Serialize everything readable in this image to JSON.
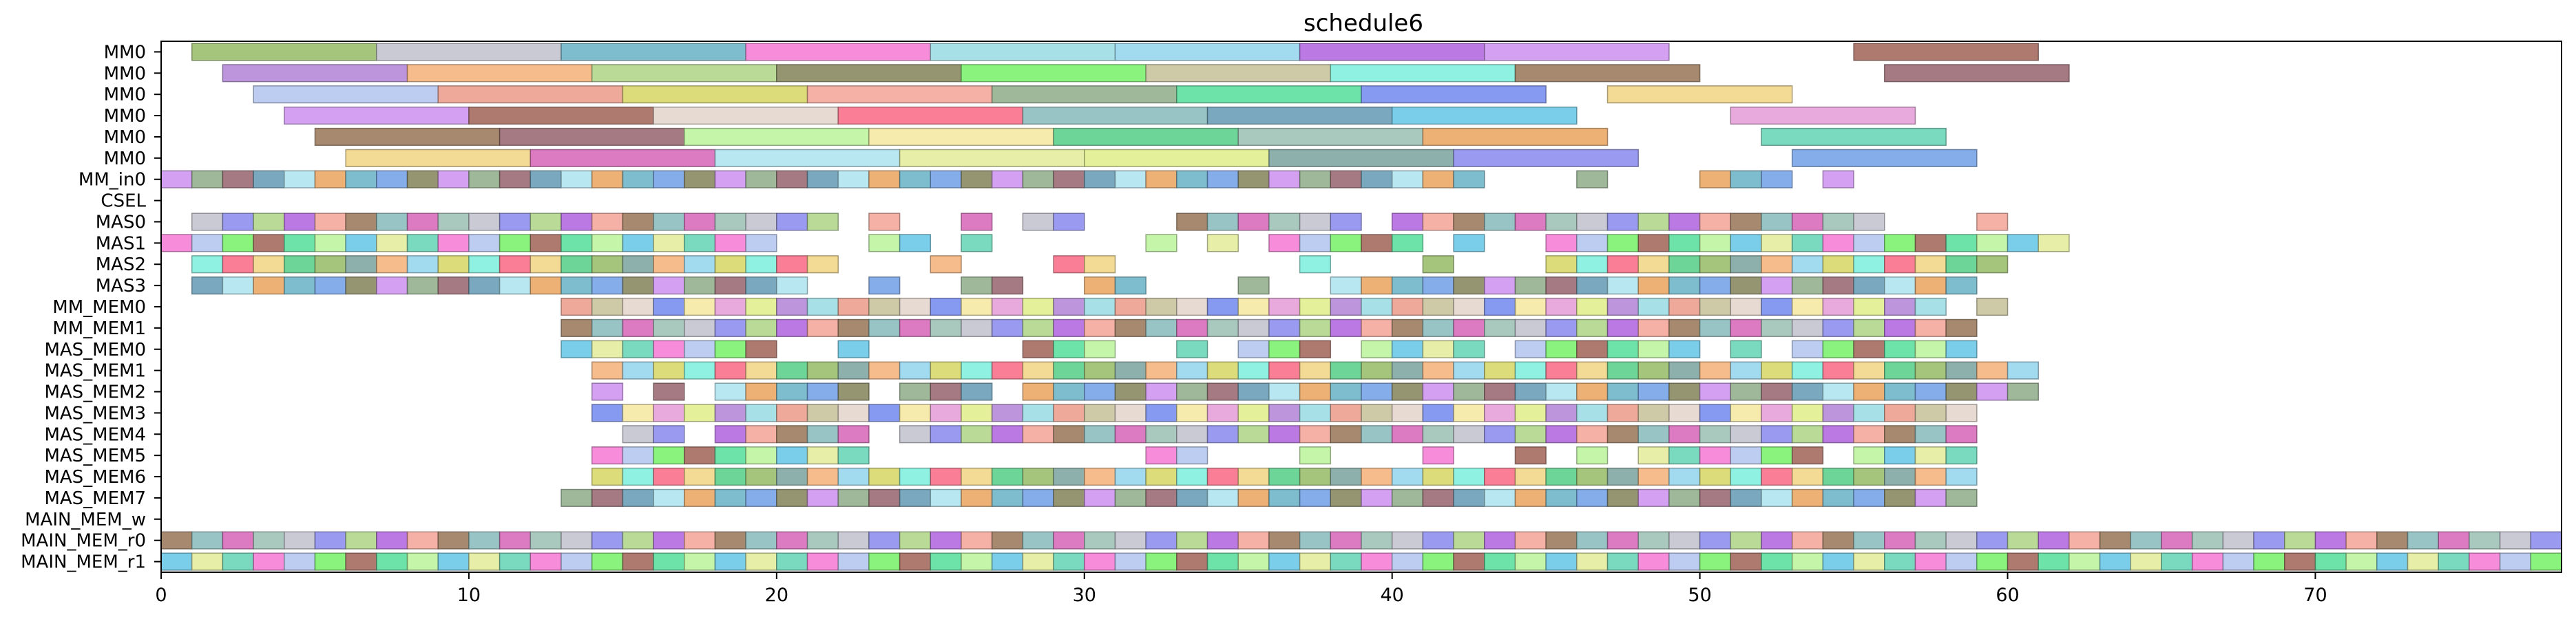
{
  "chart_data": {
    "type": "gantt",
    "title": "schedule6",
    "xlabel": "",
    "ylabel": "",
    "xlim": [
      0,
      78
    ],
    "x_ticks": [
      0,
      10,
      20,
      30,
      40,
      50,
      60,
      70
    ],
    "rows": [
      "MM0",
      "MM0",
      "MM0",
      "MM0",
      "MM0",
      "MM0",
      "MM_in0",
      "CSEL",
      "MAS0",
      "MAS1",
      "MAS2",
      "MAS3",
      "MM_MEM0",
      "MM_MEM1",
      "MAS_MEM0",
      "MAS_MEM1",
      "MAS_MEM2",
      "MAS_MEM3",
      "MAS_MEM4",
      "MAS_MEM5",
      "MAS_MEM6",
      "MAS_MEM7",
      "MAIN_MEM_w",
      "MAIN_MEM_r0",
      "MAIN_MEM_r1"
    ],
    "palette": [
      "#9cbf6e",
      "#eba867",
      "#e2f08f",
      "#c4c4d0",
      "#6cd6b8",
      "#82a7a3",
      "#6fb6c8",
      "#b58ad8",
      "#8f8fef",
      "#f67fd6",
      "#f5b57e",
      "#78a4e8",
      "#9fdde4",
      "#b3d68d",
      "#b6c8f0",
      "#98d6ee",
      "#8a8a62",
      "#eda090",
      "#b46ce0",
      "#7cf26f",
      "#d9d86c",
      "#cf96f0",
      "#c9c49e",
      "#f4a89c",
      "#a56a5e",
      "#82f0de",
      "#94b08e",
      "#e4d6ce",
      "#9c7c5e",
      "#5de0a0",
      "#f9708a",
      "#9b6c74",
      "#7a8fef",
      "#8ebec0",
      "#bff49f",
      "#f2d68a",
      "#6ca0b8",
      "#f5e9a4",
      "#d86cbb",
      "#6cc9e8",
      "#5ed08e",
      "#b0e4f0",
      "#e6a0d8",
      "#a0c3b8",
      "#e4ec9f"
    ],
    "tasks": {
      "mm_rows": [
        [
          [
            1,
            7
          ],
          [
            7,
            13
          ],
          [
            13,
            19
          ],
          [
            19,
            25
          ],
          [
            25,
            31
          ],
          [
            31,
            37
          ],
          [
            37,
            43
          ],
          [
            43,
            49
          ],
          [
            55,
            61
          ]
        ],
        [
          [
            2,
            8
          ],
          [
            8,
            14
          ],
          [
            14,
            20
          ],
          [
            20,
            26
          ],
          [
            26,
            32
          ],
          [
            32,
            38
          ],
          [
            38,
            44
          ],
          [
            44,
            50
          ],
          [
            56,
            62
          ]
        ],
        [
          [
            3,
            9
          ],
          [
            9,
            15
          ],
          [
            15,
            21
          ],
          [
            21,
            27
          ],
          [
            27,
            33
          ],
          [
            33,
            39
          ],
          [
            39,
            45
          ],
          [
            47,
            53
          ]
        ],
        [
          [
            4,
            10
          ],
          [
            10,
            16
          ],
          [
            16,
            22
          ],
          [
            22,
            28
          ],
          [
            28,
            34
          ],
          [
            34,
            40
          ],
          [
            40,
            46
          ],
          [
            51,
            57
          ]
        ],
        [
          [
            5,
            11
          ],
          [
            11,
            17
          ],
          [
            17,
            23
          ],
          [
            23,
            29
          ],
          [
            29,
            35
          ],
          [
            35,
            41
          ],
          [
            41,
            47
          ],
          [
            52,
            58
          ]
        ],
        [
          [
            6,
            12
          ],
          [
            12,
            18
          ],
          [
            18,
            24
          ],
          [
            24,
            30
          ],
          [
            30,
            36
          ],
          [
            36,
            42
          ],
          [
            42,
            48
          ],
          [
            53,
            59
          ]
        ]
      ],
      "slots": {
        "MM_in0": [
          0,
          1,
          2,
          3,
          4,
          5,
          6,
          7,
          8,
          9,
          10,
          11,
          12,
          13,
          14,
          15,
          16,
          17,
          18,
          19,
          20,
          21,
          22,
          23,
          24,
          25,
          26,
          27,
          28,
          29,
          30,
          31,
          32,
          33,
          34,
          35,
          36,
          37,
          38,
          39,
          40,
          41,
          42,
          46,
          50,
          51,
          52,
          54
        ],
        "MAS0": [
          1,
          2,
          3,
          4,
          5,
          6,
          7,
          8,
          9,
          10,
          11,
          12,
          13,
          14,
          15,
          16,
          17,
          18,
          19,
          20,
          21,
          23,
          26,
          28,
          29,
          33,
          34,
          35,
          36,
          37,
          38,
          40,
          41,
          42,
          43,
          44,
          45,
          46,
          47,
          48,
          49,
          50,
          51,
          52,
          53,
          54,
          55,
          59
        ],
        "MAS1": [
          0,
          1,
          2,
          3,
          4,
          5,
          6,
          7,
          8,
          9,
          10,
          11,
          12,
          13,
          14,
          15,
          16,
          17,
          18,
          19,
          23,
          24,
          26,
          32,
          34,
          36,
          37,
          38,
          39,
          40,
          42,
          45,
          46,
          47,
          48,
          49,
          50,
          51,
          52,
          53,
          54,
          55,
          56,
          57,
          58,
          59,
          60,
          61
        ],
        "MAS2": [
          1,
          2,
          3,
          4,
          5,
          6,
          7,
          8,
          9,
          10,
          11,
          12,
          13,
          14,
          15,
          16,
          17,
          18,
          19,
          20,
          21,
          25,
          29,
          30,
          37,
          41,
          45,
          46,
          47,
          48,
          49,
          50,
          51,
          52,
          53,
          54,
          55,
          56,
          57,
          58,
          59
        ],
        "MAS3": [
          1,
          2,
          3,
          4,
          5,
          6,
          7,
          8,
          9,
          10,
          11,
          12,
          13,
          14,
          15,
          16,
          17,
          18,
          19,
          20,
          23,
          26,
          27,
          30,
          31,
          35,
          38,
          39,
          40,
          41,
          42,
          43,
          44,
          45,
          46,
          47,
          48,
          49,
          50,
          51,
          52,
          53,
          54,
          55,
          56,
          57,
          58
        ],
        "MM_MEM0": [
          13,
          14,
          15,
          16,
          17,
          18,
          19,
          20,
          21,
          22,
          23,
          24,
          25,
          26,
          27,
          28,
          29,
          30,
          31,
          32,
          33,
          34,
          35,
          36,
          37,
          38,
          39,
          40,
          41,
          42,
          43,
          44,
          45,
          46,
          47,
          48,
          49,
          50,
          51,
          52,
          53,
          54,
          55,
          56,
          57,
          59
        ],
        "MM_MEM1": [
          13,
          14,
          15,
          16,
          17,
          18,
          19,
          20,
          21,
          22,
          23,
          24,
          25,
          26,
          27,
          28,
          29,
          30,
          31,
          32,
          33,
          34,
          35,
          36,
          37,
          38,
          39,
          40,
          41,
          42,
          43,
          44,
          45,
          46,
          47,
          48,
          49,
          50,
          51,
          52,
          53,
          54,
          55,
          56,
          57,
          58
        ],
        "MAS_MEM0": [
          13,
          14,
          15,
          16,
          17,
          18,
          19,
          22,
          28,
          29,
          30,
          33,
          35,
          36,
          37,
          39,
          40,
          41,
          42,
          44,
          45,
          46,
          47,
          48,
          49,
          51,
          53,
          54,
          55,
          56,
          57,
          58
        ],
        "MAS_MEM1": [
          14,
          15,
          16,
          17,
          18,
          19,
          20,
          21,
          22,
          23,
          24,
          25,
          26,
          27,
          28,
          29,
          30,
          31,
          32,
          33,
          34,
          35,
          36,
          37,
          38,
          39,
          40,
          41,
          42,
          43,
          44,
          45,
          46,
          47,
          48,
          49,
          50,
          51,
          52,
          53,
          54,
          55,
          56,
          57,
          58,
          59,
          60
        ],
        "MAS_MEM2": [
          14,
          16,
          18,
          19,
          20,
          21,
          22,
          24,
          25,
          26,
          28,
          29,
          30,
          31,
          32,
          33,
          34,
          35,
          36,
          37,
          38,
          39,
          40,
          41,
          42,
          43,
          44,
          45,
          46,
          47,
          48,
          49,
          50,
          51,
          52,
          53,
          54,
          55,
          56,
          57,
          58,
          59,
          60
        ],
        "MAS_MEM3": [
          14,
          15,
          16,
          17,
          18,
          19,
          20,
          21,
          22,
          23,
          24,
          25,
          26,
          27,
          28,
          29,
          30,
          31,
          32,
          33,
          34,
          35,
          36,
          37,
          38,
          39,
          40,
          41,
          42,
          43,
          44,
          45,
          46,
          47,
          48,
          49,
          50,
          51,
          52,
          53,
          54,
          55,
          56,
          57,
          58
        ],
        "MAS_MEM4": [
          15,
          16,
          18,
          19,
          20,
          21,
          22,
          24,
          25,
          26,
          27,
          28,
          29,
          30,
          31,
          32,
          33,
          34,
          35,
          36,
          37,
          38,
          39,
          40,
          41,
          42,
          43,
          44,
          45,
          46,
          47,
          48,
          49,
          50,
          51,
          52,
          53,
          54,
          55,
          56,
          57,
          58
        ],
        "MAS_MEM5": [
          14,
          15,
          16,
          17,
          18,
          19,
          20,
          21,
          22,
          32,
          33,
          37,
          41,
          44,
          46,
          48,
          49,
          50,
          51,
          52,
          53,
          55,
          56,
          57,
          58
        ],
        "MAS_MEM6": [
          14,
          15,
          16,
          17,
          18,
          19,
          20,
          21,
          22,
          23,
          24,
          25,
          26,
          27,
          28,
          29,
          30,
          31,
          32,
          33,
          34,
          35,
          36,
          37,
          38,
          39,
          40,
          41,
          42,
          43,
          44,
          45,
          46,
          47,
          48,
          49,
          50,
          51,
          52,
          53,
          54,
          55,
          56,
          57,
          58
        ],
        "MAS_MEM7": [
          13,
          14,
          15,
          16,
          17,
          18,
          19,
          20,
          21,
          22,
          23,
          24,
          25,
          26,
          27,
          28,
          29,
          30,
          31,
          32,
          33,
          34,
          35,
          36,
          37,
          38,
          39,
          40,
          41,
          42,
          43,
          44,
          45,
          46,
          47,
          48,
          49,
          50,
          51,
          52,
          53,
          54,
          55,
          56,
          57,
          58
        ],
        "MAIN_MEM_r0": [
          0,
          1,
          2,
          3,
          4,
          5,
          6,
          7,
          8,
          9,
          10,
          11,
          12,
          13,
          14,
          15,
          16,
          17,
          18,
          19,
          20,
          21,
          22,
          23,
          24,
          25,
          26,
          27,
          28,
          29,
          30,
          31,
          32,
          33,
          34,
          35,
          36,
          37,
          38,
          39,
          40,
          41,
          42,
          43,
          44,
          45,
          46,
          47,
          48,
          49,
          50,
          51,
          52,
          53,
          54,
          55,
          56,
          57,
          58,
          59,
          60,
          61,
          62,
          63,
          64,
          65,
          66,
          67,
          68,
          69,
          70,
          71,
          72,
          73,
          74,
          75,
          76,
          77
        ],
        "MAIN_MEM_r1": [
          0,
          1,
          2,
          3,
          4,
          5,
          6,
          7,
          8,
          9,
          10,
          11,
          12,
          13,
          14,
          15,
          16,
          17,
          18,
          19,
          20,
          21,
          22,
          23,
          24,
          25,
          26,
          27,
          28,
          29,
          30,
          31,
          32,
          33,
          34,
          35,
          36,
          37,
          38,
          39,
          40,
          41,
          42,
          43,
          44,
          45,
          46,
          47,
          48,
          49,
          50,
          51,
          52,
          53,
          54,
          55,
          56,
          57,
          58,
          59,
          60,
          61,
          62,
          63,
          64,
          65,
          66,
          67,
          68,
          69,
          70,
          71,
          72,
          73,
          74,
          75,
          76,
          77
        ]
      }
    }
  }
}
